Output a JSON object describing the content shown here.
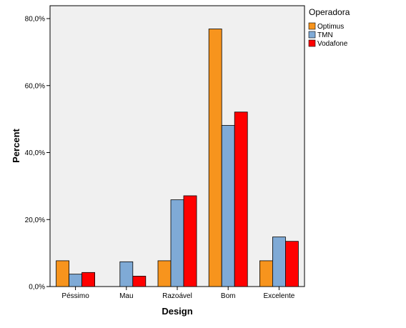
{
  "chart_data": {
    "type": "bar",
    "xlabel": "Design",
    "ylabel": "Percent",
    "ylim": [
      0,
      80
    ],
    "yticks": [
      {
        "value": 0,
        "label": "0,0%"
      },
      {
        "value": 20,
        "label": "20,0%"
      },
      {
        "value": 40,
        "label": "40,0%"
      },
      {
        "value": 60,
        "label": "60,0%"
      },
      {
        "value": 80,
        "label": "80,0%"
      }
    ],
    "categories": [
      "Péssimo",
      "Mau",
      "Razoável",
      "Bom",
      "Excelente"
    ],
    "legend": {
      "title": "Operadora",
      "placement": "right"
    },
    "grid": false,
    "background_color": "#f0f0f0",
    "series": [
      {
        "name": "Optimus",
        "color": "#f7941d",
        "values": [
          7.7,
          0,
          7.7,
          76.9,
          7.7
        ]
      },
      {
        "name": "TMN",
        "color": "#7faad6",
        "values": [
          3.7,
          7.4,
          25.9,
          48.1,
          14.8
        ]
      },
      {
        "name": "Vodafone",
        "color": "#ff0000",
        "values": [
          4.2,
          3.1,
          27.1,
          52.1,
          13.5
        ]
      }
    ]
  }
}
